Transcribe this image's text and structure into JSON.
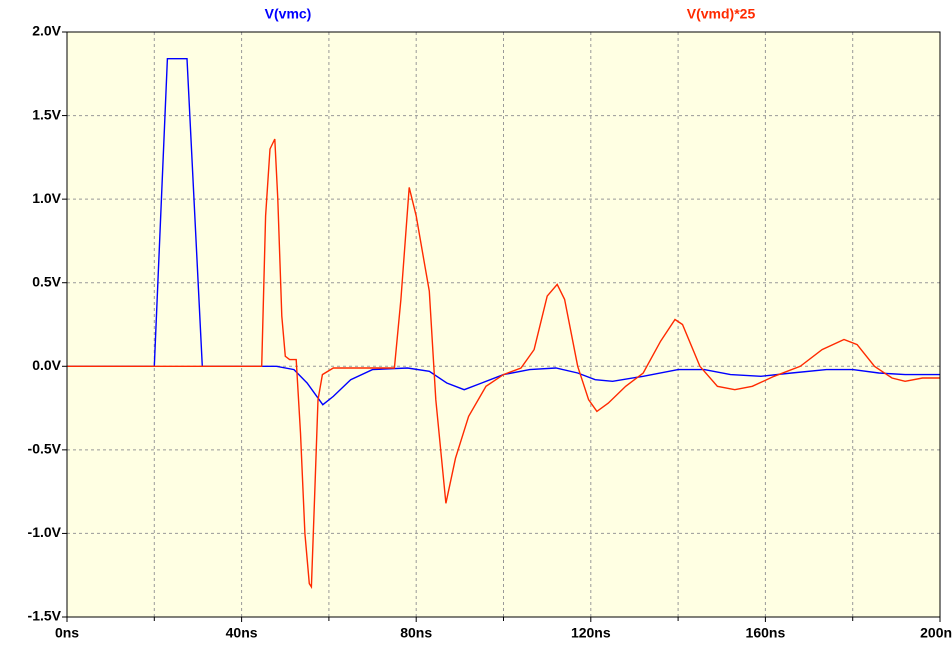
{
  "chart_data": {
    "type": "line",
    "xlim": [
      0,
      200
    ],
    "xticks": [
      {
        "value": 0,
        "label": "0ns"
      },
      {
        "value": 40,
        "label": "40ns"
      },
      {
        "value": 80,
        "label": "80ns"
      },
      {
        "value": 120,
        "label": "120ns"
      },
      {
        "value": 160,
        "label": "160ns"
      },
      {
        "value": 200,
        "label": "200ns"
      }
    ],
    "xminor": [
      20,
      60,
      100,
      140,
      180
    ],
    "ylim": [
      -1.5,
      2.0
    ],
    "yticks": [
      {
        "value": -1.5,
        "label": "-1.5V"
      },
      {
        "value": -1.0,
        "label": "-1.0V"
      },
      {
        "value": -0.5,
        "label": "-0.5V"
      },
      {
        "value": 0.0,
        "label": "0.0V"
      },
      {
        "value": 0.5,
        "label": "0.5V"
      },
      {
        "value": 1.0,
        "label": "1.0V"
      },
      {
        "value": 1.5,
        "label": "1.5V"
      },
      {
        "value": 2.0,
        "label": "2.0V"
      }
    ],
    "grid": true,
    "series": [
      {
        "name": "V(vmc)",
        "color": "#0000ff",
        "x": [
          0,
          20,
          23,
          27.5,
          31,
          48,
          52,
          55,
          58.6,
          61,
          65,
          70,
          78,
          83,
          87,
          91,
          95,
          100,
          106,
          112,
          117,
          121,
          125,
          132,
          140,
          146,
          152,
          159,
          166,
          174,
          180,
          186,
          192,
          200
        ],
        "values": [
          0,
          0,
          1.84,
          1.84,
          0,
          0,
          -0.02,
          -0.1,
          -0.23,
          -0.18,
          -0.08,
          -0.02,
          -0.01,
          -0.03,
          -0.1,
          -0.14,
          -0.1,
          -0.05,
          -0.02,
          -0.01,
          -0.04,
          -0.08,
          -0.09,
          -0.06,
          -0.02,
          -0.02,
          -0.05,
          -0.06,
          -0.04,
          -0.02,
          -0.02,
          -0.04,
          -0.05,
          -0.05
        ]
      },
      {
        "name": "V(vmd)*25",
        "color": "#ff2a00",
        "x": [
          0,
          44.6,
          45.5,
          46.5,
          47.6,
          48.3,
          49.2,
          50,
          51,
          52.5,
          53.5,
          54.5,
          55.5,
          56,
          56.7,
          57.5,
          58.5,
          61,
          75,
          76.5,
          78.4,
          80,
          82,
          83,
          84.5,
          86.8,
          89,
          92,
          96,
          100,
          104,
          107,
          110,
          112.3,
          114,
          117,
          119.5,
          121.4,
          124,
          128,
          132,
          136,
          139.3,
          141,
          145,
          149,
          153,
          157,
          162,
          168,
          173,
          178,
          181,
          185,
          189,
          192,
          196,
          200
        ],
        "values": [
          0,
          0,
          0.9,
          1.3,
          1.36,
          1.0,
          0.3,
          0.06,
          0.04,
          0.04,
          -0.4,
          -1.0,
          -1.3,
          -1.32,
          -0.8,
          -0.2,
          -0.05,
          -0.01,
          -0.01,
          0.4,
          1.07,
          0.9,
          0.6,
          0.45,
          -0.2,
          -0.82,
          -0.55,
          -0.3,
          -0.12,
          -0.05,
          -0.01,
          0.1,
          0.42,
          0.49,
          0.4,
          0.0,
          -0.2,
          -0.27,
          -0.22,
          -0.12,
          -0.04,
          0.15,
          0.28,
          0.25,
          0.0,
          -0.12,
          -0.14,
          -0.12,
          -0.06,
          0.0,
          0.1,
          0.16,
          0.13,
          0.0,
          -0.07,
          -0.09,
          -0.07,
          -0.07
        ]
      }
    ]
  }
}
